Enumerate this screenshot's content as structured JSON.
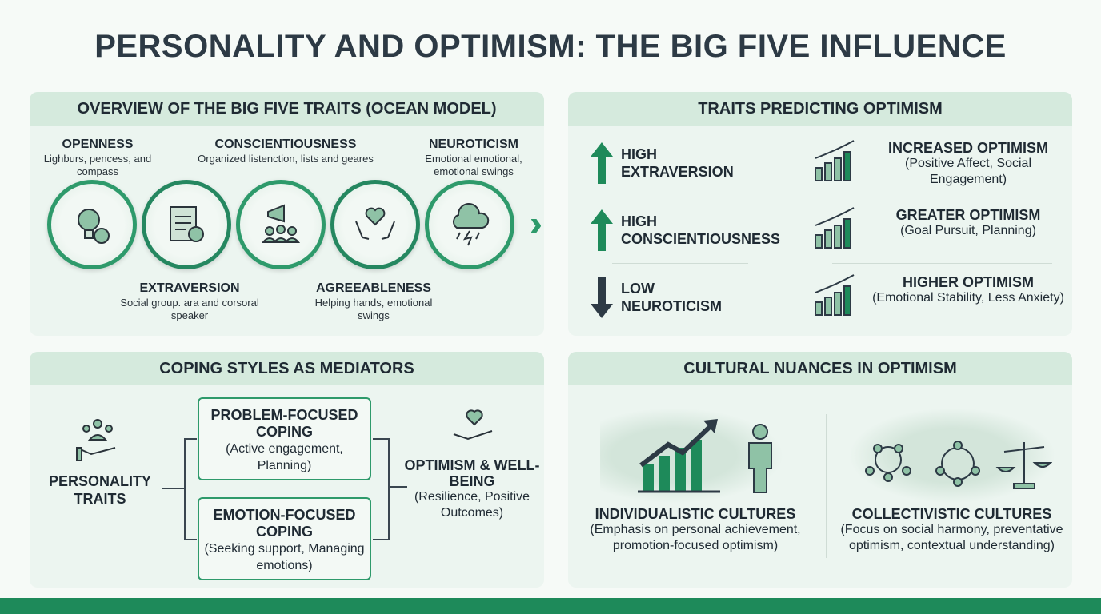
{
  "title": "PERSONALITY AND OPTIMISM: THE BIG FIVE INFLUENCE",
  "overview": {
    "header": "OVERVIEW OF THE BIG FIVE TRAITS (OCEAN MODEL)",
    "traits": [
      {
        "name": "OPENNESS",
        "desc": "Lighburs, pencess, and compass",
        "icon": "lightbulb-compass-icon"
      },
      {
        "name": "EXTRAVERSION",
        "desc": "Social group. ara and corsoral speaker",
        "icon": "clipboard-gear-icon"
      },
      {
        "name": "CONSCIENTIOUSNESS",
        "desc": "Organized listenction, lists and geares",
        "icon": "megaphone-group-icon"
      },
      {
        "name": "AGREEABLENESS",
        "desc": "Helping hands, emotional swings",
        "icon": "heart-hands-icon"
      },
      {
        "name": "NEUROTICISM",
        "desc": "Emotional emotional, emotional swings",
        "icon": "storm-cloud-icon"
      }
    ]
  },
  "predicting": {
    "header": "TRAITS PREDICTING OPTIMISM",
    "rows": [
      {
        "level": "HIGH",
        "trait": "EXTRAVERSION",
        "direction": "up",
        "result": "INCREASED OPTIMISM",
        "detail": "(Positive Affect, Social Engagement)",
        "icon": "bar-chart-up-icon"
      },
      {
        "level": "HIGH",
        "trait": "CONSCIENTIOUSNESS",
        "direction": "up",
        "result": "GREATER OPTIMISM",
        "detail": "(Goal Pursuit, Planning)",
        "icon": "gear-arrow-up-icon"
      },
      {
        "level": "LOW",
        "trait": "NEUROTICISM",
        "direction": "down",
        "result": "HIGHER OPTIMISM",
        "detail": "(Emotional Stability, Less Anxiety)",
        "icon": "line-chart-icon"
      }
    ]
  },
  "coping": {
    "header": "COPING STYLES AS MEDIATORS",
    "source": "PERSONALITY TRAITS",
    "problem": {
      "title": "PROBLEM-FOCUSED COPING",
      "detail": "(Active engagement, Planning)"
    },
    "emotion": {
      "title": "EMOTION-FOCUSED COPING",
      "detail": "(Seeking support, Managing emotions)"
    },
    "outcome": {
      "title": "OPTIMISM & WELL-BEING",
      "detail": "(Resilience, Positive Outcomes)"
    }
  },
  "cultural": {
    "header": "CULTURAL NUANCES IN OPTIMISM",
    "individualistic": {
      "title": "INDIVIDUALISTIC CULTURES",
      "detail": "(Emphasis on personal achievement, promotion-focused optimism)"
    },
    "collectivistic": {
      "title": "COLLECTIVISTIC CULTURES",
      "detail": "(Focus on social harmony, preventative optimism, contextual understanding)"
    }
  },
  "colors": {
    "accent": "#2e9a6b",
    "dark": "#2d3a45",
    "footer": "#1e8a5a",
    "panel": "#ecf5f0",
    "header": "#d5eadd"
  }
}
